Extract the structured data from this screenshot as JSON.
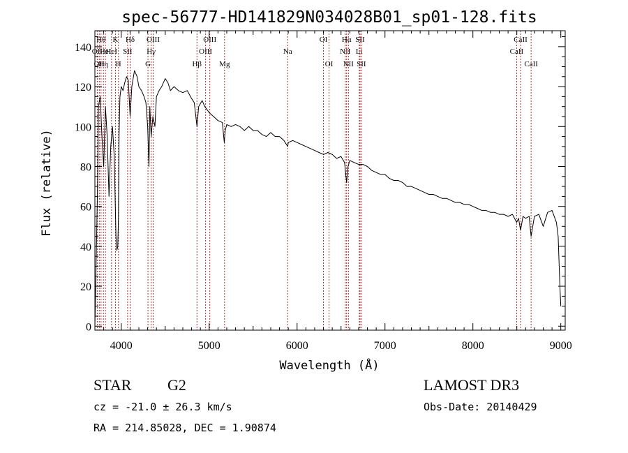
{
  "chart_data": {
    "type": "line",
    "title": "spec-56777-HD141829N034028B01_sp01-128.fits",
    "xlabel": "Wavelength (Å)",
    "ylabel": "Flux (relative)",
    "xlim": [
      3700,
      9050
    ],
    "ylim": [
      -2,
      148
    ],
    "xticks": [
      4000,
      5000,
      6000,
      7000,
      8000,
      9000
    ],
    "yticks": [
      0,
      20,
      40,
      60,
      80,
      100,
      120,
      140
    ],
    "line_color": "#000000",
    "marker_color": "#b03030",
    "series": [
      {
        "name": "flux",
        "x": [
          3700,
          3720,
          3730,
          3740,
          3760,
          3780,
          3800,
          3820,
          3840,
          3860,
          3880,
          3900,
          3920,
          3940,
          3950,
          3960,
          3968,
          3975,
          3985,
          4000,
          4020,
          4040,
          4060,
          4080,
          4101,
          4120,
          4150,
          4180,
          4200,
          4230,
          4260,
          4280,
          4300,
          4315,
          4325,
          4340,
          4360,
          4383,
          4400,
          4430,
          4460,
          4500,
          4530,
          4560,
          4600,
          4650,
          4700,
          4750,
          4800,
          4830,
          4861,
          4880,
          4920,
          4950,
          5000,
          5050,
          5100,
          5150,
          5172,
          5183,
          5200,
          5250,
          5300,
          5350,
          5400,
          5450,
          5500,
          5550,
          5600,
          5650,
          5700,
          5750,
          5800,
          5850,
          5893,
          5900,
          5950,
          6000,
          6050,
          6100,
          6150,
          6200,
          6250,
          6300,
          6350,
          6400,
          6450,
          6500,
          6540,
          6563,
          6580,
          6600,
          6650,
          6700,
          6750,
          6800,
          6850,
          6900,
          6950,
          7000,
          7050,
          7100,
          7150,
          7200,
          7250,
          7300,
          7350,
          7400,
          7450,
          7500,
          7550,
          7600,
          7650,
          7700,
          7750,
          7800,
          7850,
          7900,
          7950,
          8000,
          8050,
          8100,
          8150,
          8200,
          8250,
          8300,
          8350,
          8400,
          8450,
          8498,
          8520,
          8542,
          8570,
          8600,
          8640,
          8662,
          8700,
          8750,
          8800,
          8850,
          8900,
          8950,
          8970,
          8990,
          9000
        ],
        "values": [
          0,
          45,
          70,
          110,
          115,
          95,
          80,
          110,
          95,
          65,
          90,
          100,
          85,
          45,
          38,
          40,
          55,
          95,
          115,
          120,
          118,
          122,
          125,
          123,
          105,
          120,
          128,
          125,
          120,
          118,
          115,
          112,
          100,
          80,
          110,
          95,
          105,
          100,
          115,
          118,
          120,
          124,
          122,
          118,
          120,
          118,
          117,
          118,
          114,
          112,
          100,
          110,
          113,
          110,
          107,
          105,
          103,
          102,
          92,
          98,
          101,
          100,
          101,
          100,
          98,
          100,
          98,
          98,
          96,
          95,
          97,
          95,
          95,
          93,
          90,
          92,
          93,
          92,
          91,
          90,
          89,
          88,
          87,
          86,
          87,
          86,
          84,
          85,
          82,
          72,
          80,
          83,
          82,
          81,
          81,
          80,
          78,
          77,
          76,
          76,
          74,
          73,
          73,
          72,
          70,
          70,
          69,
          68,
          67,
          66,
          66,
          65,
          64,
          64,
          63,
          62,
          62,
          61,
          61,
          60,
          59,
          58,
          58,
          57,
          57,
          56,
          56,
          55,
          56,
          52,
          54,
          48,
          55,
          54,
          55,
          45,
          55,
          56,
          50,
          57,
          58,
          52,
          45,
          20,
          10
        ]
      }
    ],
    "markers": [
      {
        "x": 3727,
        "row": 1,
        "label": "OII"
      },
      {
        "x": 3750,
        "row": 2,
        "label": "OII"
      },
      {
        "x": 3770,
        "row": 0,
        "label": "Hθ"
      },
      {
        "x": 3797,
        "row": 2,
        "label": "Hη"
      },
      {
        "x": 3820,
        "row": 1,
        "label": "HeI"
      },
      {
        "x": 3889,
        "row": 1,
        "label": "HeI"
      },
      {
        "x": 3934,
        "row": 0,
        "label": "K"
      },
      {
        "x": 3968,
        "row": 2,
        "label": "H"
      },
      {
        "x": 4072,
        "row": 1,
        "label": "SII"
      },
      {
        "x": 4101,
        "row": 0,
        "label": "Hδ"
      },
      {
        "x": 4304,
        "row": 2,
        "label": "G"
      },
      {
        "x": 4340,
        "row": 1,
        "label": "Hγ"
      },
      {
        "x": 4363,
        "row": 0,
        "label": "OIII"
      },
      {
        "x": 4861,
        "row": 2,
        "label": "Hβ"
      },
      {
        "x": 4959,
        "row": 1,
        "label": "OIII"
      },
      {
        "x": 5007,
        "row": 0,
        "label": "OIII"
      },
      {
        "x": 5175,
        "row": 2,
        "label": "Mg"
      },
      {
        "x": 5893,
        "row": 1,
        "label": "Na"
      },
      {
        "x": 6300,
        "row": 0,
        "label": "OI"
      },
      {
        "x": 6364,
        "row": 2,
        "label": "OI"
      },
      {
        "x": 6548,
        "row": 1,
        "label": "NII"
      },
      {
        "x": 6563,
        "row": 0,
        "label": "Hα"
      },
      {
        "x": 6584,
        "row": 2,
        "label": "NII"
      },
      {
        "x": 6707,
        "row": 1,
        "label": "Li"
      },
      {
        "x": 6716,
        "row": 0,
        "label": "SII"
      },
      {
        "x": 6731,
        "row": 2,
        "label": "SII"
      },
      {
        "x": 8498,
        "row": 1,
        "label": "CaII"
      },
      {
        "x": 8542,
        "row": 0,
        "label": "CaII"
      },
      {
        "x": 8662,
        "row": 2,
        "label": "CaII"
      }
    ]
  },
  "info": {
    "object_class": "STAR",
    "subclass": "G2",
    "survey": "LAMOST DR3",
    "redshift": "cz = -21.0 ± 26.3 km/s",
    "obs_date": "Obs-Date: 20140429",
    "coords": "RA = 214.85028, DEC =    1.90874"
  }
}
